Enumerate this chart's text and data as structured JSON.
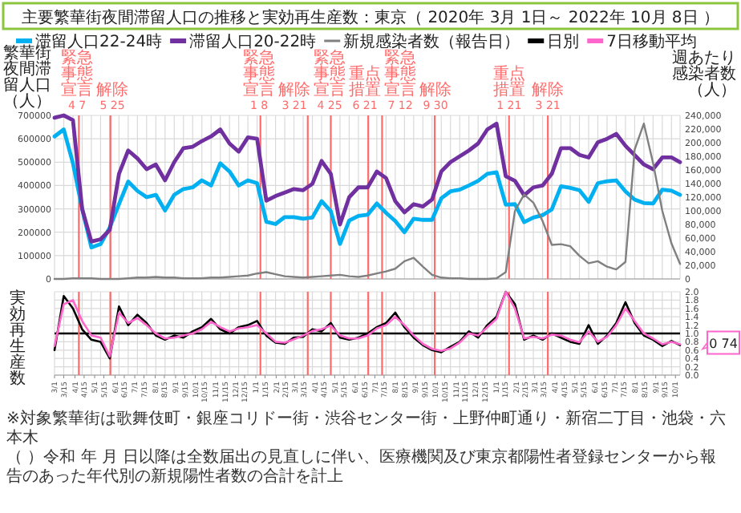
{
  "chart_data": [
    {
      "type": "line",
      "title": "主要繁華街夜間滞留人口の推移と実効再生産数：東京（ 2020年 3月 1日～ 2022年 10月 8日 ）",
      "ylabel": "繁華街夜間滞留人口（人）",
      "y2label": "週あたり感染者数（人）",
      "legend": "top",
      "grid": true,
      "tick_labels": "y",
      "x": [
        "2020-03-01",
        "2020-03-15",
        "2020-03-29",
        "2020-04-12",
        "2020-04-26",
        "2020-05-10",
        "2020-05-24",
        "2020-06-07",
        "2020-06-21",
        "2020-07-05",
        "2020-07-19",
        "2020-08-02",
        "2020-08-16",
        "2020-08-30",
        "2020-09-13",
        "2020-09-27",
        "2020-10-11",
        "2020-10-25",
        "2020-11-08",
        "2020-11-22",
        "2020-12-06",
        "2020-12-20",
        "2021-01-03",
        "2021-01-17",
        "2021-01-31",
        "2021-02-14",
        "2021-02-28",
        "2021-03-14",
        "2021-03-28",
        "2021-04-11",
        "2021-04-25",
        "2021-05-09",
        "2021-05-23",
        "2021-06-06",
        "2021-06-20",
        "2021-07-04",
        "2021-07-18",
        "2021-08-01",
        "2021-08-15",
        "2021-08-29",
        "2021-09-12",
        "2021-09-26",
        "2021-10-10",
        "2021-10-24",
        "2021-11-07",
        "2021-11-21",
        "2021-12-05",
        "2021-12-19",
        "2022-01-02",
        "2022-01-16",
        "2022-01-30",
        "2022-02-13",
        "2022-02-27",
        "2022-03-13",
        "2022-03-27",
        "2022-04-10",
        "2022-04-24",
        "2022-05-08",
        "2022-05-22",
        "2022-06-05",
        "2022-06-19",
        "2022-07-03",
        "2022-07-17",
        "2022-07-31",
        "2022-08-14",
        "2022-08-28",
        "2022-09-11",
        "2022-09-25",
        "2022-10-08"
      ],
      "xlim": [
        "2020-03-01",
        "2022-10-08"
      ],
      "ylim": [
        0,
        700000
      ],
      "yticks": [
        0,
        100000,
        200000,
        300000,
        400000,
        500000,
        600000,
        700000
      ],
      "y2lim": [
        0,
        240000
      ],
      "y2ticks": [
        0,
        {
          "value": 20000,
          "label": "20,000"
        },
        {
          "value": 40000,
          "label": "40,000"
        },
        {
          "value": 60000,
          "label": "60,000"
        },
        {
          "value": 80000,
          "label": "80,000"
        },
        {
          "value": 100000,
          "label": "100,000"
        },
        {
          "value": 120000,
          "label": "120,000"
        },
        {
          "value": 140000,
          "label": "140,000"
        },
        {
          "value": 160000,
          "label": "160,000"
        },
        {
          "value": 180000,
          "label": "180,000"
        },
        {
          "value": 200000,
          "label": "200,000"
        },
        {
          "value": 220000,
          "label": "220,000"
        },
        {
          "value": 240000,
          "label": "240,000"
        }
      ],
      "series": [
        {
          "name": "滞留人口22-24時",
          "color": "#00b0f0",
          "values": [
            610000,
            640000,
            495000,
            300000,
            135000,
            149000,
            220000,
            320000,
            417000,
            377000,
            350000,
            360000,
            293000,
            360000,
            385000,
            392000,
            422000,
            400000,
            495000,
            460000,
            400000,
            422000,
            410000,
            245000,
            235000,
            265000,
            265000,
            258000,
            263000,
            333000,
            290000,
            150000,
            250000,
            270000,
            275000,
            323000,
            283000,
            248000,
            200000,
            258000,
            253000,
            253000,
            345000,
            375000,
            382000,
            400000,
            420000,
            450000,
            457000,
            318000,
            320000,
            243000,
            263000,
            273000,
            298000,
            397000,
            390000,
            380000,
            330000,
            410000,
            418000,
            422000,
            375000,
            340000,
            325000,
            323000,
            382000,
            378000,
            360000
          ]
        },
        {
          "name": "滞留人口20-22時",
          "color": "#7030a0",
          "values": [
            690000,
            700000,
            680000,
            300000,
            160000,
            170000,
            210000,
            450000,
            550000,
            516000,
            470000,
            490000,
            422000,
            500000,
            560000,
            566000,
            590000,
            610000,
            640000,
            580000,
            545000,
            606000,
            600000,
            335000,
            355000,
            370000,
            385000,
            380000,
            407000,
            505000,
            450000,
            233000,
            350000,
            392000,
            392000,
            460000,
            432000,
            333000,
            285000,
            320000,
            310000,
            340000,
            460000,
            500000,
            525000,
            550000,
            580000,
            640000,
            665000,
            440000,
            420000,
            358000,
            392000,
            400000,
            450000,
            560000,
            560000,
            531000,
            520000,
            585000,
            600000,
            621000,
            570000,
            530000,
            490000,
            470000,
            520000,
            520000,
            500000
          ]
        },
        {
          "name": "新規感染者数（報告日）",
          "color": "#808080",
          "axis": "y2",
          "values": [
            0,
            0,
            1000,
            1000,
            1000,
            0,
            0,
            0,
            1000,
            2000,
            2000,
            3000,
            2000,
            2000,
            1000,
            1000,
            1000,
            2000,
            2000,
            3000,
            4000,
            5000,
            8000,
            10000,
            7000,
            4000,
            3000,
            2000,
            3000,
            4000,
            5000,
            6000,
            4000,
            3000,
            5000,
            8000,
            11000,
            15000,
            26000,
            31000,
            18000,
            6000,
            2000,
            1000,
            1000,
            0,
            0,
            0,
            1000,
            10000,
            100000,
            124000,
            112000,
            85000,
            50000,
            51000,
            48000,
            34000,
            23000,
            26000,
            18000,
            14000,
            25000,
            190000,
            228000,
            170000,
            100000,
            52000,
            22000
          ]
        }
      ],
      "ref_lines": [
        {
          "axis": "x",
          "value": "2020-04-07",
          "label": "緊急事態宣言 4 7",
          "color": "#ff6b6b"
        },
        {
          "axis": "x",
          "value": "2020-05-25",
          "label": "解除 5 25",
          "color": "#ff6b6b"
        },
        {
          "axis": "x",
          "value": "2021-01-08",
          "label": "緊急事態宣言 1 8",
          "color": "#ff6b6b"
        },
        {
          "axis": "x",
          "value": "2021-03-21",
          "label": "解除 3 21",
          "color": "#ff6b6b"
        },
        {
          "axis": "x",
          "value": "2021-04-25",
          "label": "緊急事態宣言 4 25",
          "color": "#ff6b6b"
        },
        {
          "axis": "x",
          "value": "2021-06-21",
          "label": "重点措置 6 21",
          "color": "#ff6b6b"
        },
        {
          "axis": "x",
          "value": "2021-07-12",
          "label": "緊急事態宣言 7 12",
          "color": "#ff6b6b"
        },
        {
          "axis": "x",
          "value": "2021-09-30",
          "label": "解除 9 30",
          "color": "#ff6b6b"
        },
        {
          "axis": "x",
          "value": "2022-01-21",
          "label": "重点措置 1 21",
          "color": "#ff6b6b"
        },
        {
          "axis": "x",
          "value": "2022-03-21",
          "label": "解除 3 21",
          "color": "#ff6b6b"
        }
      ]
    },
    {
      "type": "line",
      "ylabel": "実効再生産数",
      "legend": "top",
      "grid": true,
      "x": [
        "2020-03-01",
        "2020-03-15",
        "2020-03-29",
        "2020-04-12",
        "2020-04-26",
        "2020-05-10",
        "2020-05-24",
        "2020-06-07",
        "2020-06-21",
        "2020-07-05",
        "2020-07-19",
        "2020-08-02",
        "2020-08-16",
        "2020-08-30",
        "2020-09-13",
        "2020-09-27",
        "2020-10-11",
        "2020-10-25",
        "2020-11-08",
        "2020-11-22",
        "2020-12-06",
        "2020-12-20",
        "2021-01-03",
        "2021-01-17",
        "2021-01-31",
        "2021-02-14",
        "2021-02-28",
        "2021-03-14",
        "2021-03-28",
        "2021-04-11",
        "2021-04-25",
        "2021-05-09",
        "2021-05-23",
        "2021-06-06",
        "2021-06-20",
        "2021-07-04",
        "2021-07-18",
        "2021-08-01",
        "2021-08-15",
        "2021-08-29",
        "2021-09-12",
        "2021-09-26",
        "2021-10-10",
        "2021-10-24",
        "2021-11-07",
        "2021-11-21",
        "2021-12-05",
        "2021-12-19",
        "2022-01-02",
        "2022-01-16",
        "2022-01-30",
        "2022-02-13",
        "2022-02-27",
        "2022-03-13",
        "2022-03-27",
        "2022-04-10",
        "2022-04-24",
        "2022-05-08",
        "2022-05-22",
        "2022-06-05",
        "2022-06-19",
        "2022-07-03",
        "2022-07-17",
        "2022-07-31",
        "2022-08-14",
        "2022-08-28",
        "2022-09-11",
        "2022-09-25",
        "2022-10-08"
      ],
      "xlim": [
        "2020-03-01",
        "2022-10-08"
      ],
      "ylim": [
        0,
        2
      ],
      "yticks": [
        {
          "value": 0,
          "label": "0.0"
        },
        0.2,
        0.4,
        0.6,
        0.8,
        {
          "value": 1,
          "label": "1.0"
        },
        1.2,
        1.4,
        1.6,
        1.8,
        {
          "value": 2,
          "label": "2.0"
        }
      ],
      "xticks": [
        {
          "value": "2020-03-01",
          "label": "3/1"
        },
        {
          "value": "2020-03-15",
          "label": "3/15"
        },
        {
          "value": "2020-04-01",
          "label": "4/1"
        },
        {
          "value": "2020-04-15",
          "label": "4/15"
        },
        {
          "value": "2020-05-01",
          "label": "5/1"
        },
        {
          "value": "2020-05-15",
          "label": "5/15"
        },
        {
          "value": "2020-06-01",
          "label": "6/1"
        },
        {
          "value": "2020-06-15",
          "label": "6/15"
        },
        {
          "value": "2020-07-01",
          "label": "7/1"
        },
        {
          "value": "2020-07-15",
          "label": "7/15"
        },
        {
          "value": "2020-08-01",
          "label": "8/1"
        },
        {
          "value": "2020-08-15",
          "label": "8/15"
        },
        {
          "value": "2020-09-01",
          "label": "9/1"
        },
        {
          "value": "2020-09-15",
          "label": "9/15"
        },
        {
          "value": "2020-10-01",
          "label": "10/1"
        },
        {
          "value": "2020-10-15",
          "label": "10/15"
        },
        {
          "value": "2020-11-01",
          "label": "11/1"
        },
        {
          "value": "2020-11-15",
          "label": "11/15"
        },
        {
          "value": "2020-12-01",
          "label": "12/1"
        },
        {
          "value": "2020-12-15",
          "label": "12/15"
        },
        {
          "value": "2021-01-01",
          "label": "1/1"
        },
        {
          "value": "2021-01-15",
          "label": "1/15"
        },
        {
          "value": "2021-02-01",
          "label": "2/1"
        },
        {
          "value": "2021-02-15",
          "label": "2/15"
        },
        {
          "value": "2021-03-01",
          "label": "3/1"
        },
        {
          "value": "2021-03-15",
          "label": "3/15"
        },
        {
          "value": "2021-04-01",
          "label": "4/1"
        },
        {
          "value": "2021-04-15",
          "label": "4/15"
        },
        {
          "value": "2021-05-01",
          "label": "5/1"
        },
        {
          "value": "2021-05-15",
          "label": "5/15"
        },
        {
          "value": "2021-06-01",
          "label": "6/1"
        },
        {
          "value": "2021-06-15",
          "label": "6/15"
        },
        {
          "value": "2021-07-01",
          "label": "7/1"
        },
        {
          "value": "2021-07-15",
          "label": "7/15"
        },
        {
          "value": "2021-08-01",
          "label": "8/1"
        },
        {
          "value": "2021-08-15",
          "label": "8/15"
        },
        {
          "value": "2021-09-01",
          "label": "9/1"
        },
        {
          "value": "2021-09-15",
          "label": "9/15"
        },
        {
          "value": "2021-10-01",
          "label": "10/1"
        },
        {
          "value": "2021-10-15",
          "label": "10/15"
        },
        {
          "value": "2021-11-01",
          "label": "11/1"
        },
        {
          "value": "2021-11-15",
          "label": "11/15"
        },
        {
          "value": "2021-12-01",
          "label": "12/1"
        },
        {
          "value": "2021-12-15",
          "label": "12/15"
        },
        {
          "value": "2022-01-01",
          "label": "1/1"
        },
        {
          "value": "2022-01-15",
          "label": "1/15"
        },
        {
          "value": "2022-02-01",
          "label": "2/1"
        },
        {
          "value": "2022-02-15",
          "label": "2/15"
        },
        {
          "value": "2022-03-01",
          "label": "3/1"
        },
        {
          "value": "2022-03-15",
          "label": "3/15"
        },
        {
          "value": "2022-04-01",
          "label": "4/1"
        },
        {
          "value": "2022-04-15",
          "label": "4/15"
        },
        {
          "value": "2022-05-01",
          "label": "5/1"
        },
        {
          "value": "2022-05-15",
          "label": "5/15"
        },
        {
          "value": "2022-06-01",
          "label": "6/1"
        },
        {
          "value": "2022-06-15",
          "label": "6/15"
        },
        {
          "value": "2022-07-01",
          "label": "7/1"
        },
        {
          "value": "2022-07-15",
          "label": "7/15"
        },
        {
          "value": "2022-08-01",
          "label": "8/1"
        },
        {
          "value": "2022-08-15",
          "label": "8/15"
        },
        {
          "value": "2022-09-01",
          "label": "9/1"
        },
        {
          "value": "2022-09-15",
          "label": "9/15"
        },
        {
          "value": "2022-10-01",
          "label": "10/1"
        }
      ],
      "series": [
        {
          "name": "日別",
          "color": "#000000",
          "values": [
            0.6,
            1.9,
            1.6,
            1.1,
            0.85,
            0.8,
            0.4,
            1.65,
            1.2,
            1.45,
            1.25,
            0.95,
            0.85,
            0.95,
            0.9,
            1.05,
            1.15,
            1.35,
            1.1,
            1.0,
            1.15,
            1.2,
            1.3,
            0.95,
            0.78,
            0.75,
            0.9,
            0.92,
            1.1,
            1.05,
            1.25,
            0.9,
            0.85,
            0.9,
            1.0,
            1.15,
            1.25,
            1.5,
            1.15,
            0.9,
            0.72,
            0.6,
            0.55,
            0.68,
            0.8,
            1.05,
            0.9,
            1.2,
            1.4,
            2.0,
            1.7,
            0.85,
            0.95,
            0.85,
            1.0,
            0.9,
            0.8,
            0.75,
            1.2,
            0.75,
            0.95,
            1.25,
            1.75,
            1.25,
            0.95,
            0.85,
            0.7,
            0.82,
            0.72
          ]
        },
        {
          "name": "7日移動平均",
          "color": "#ff66cc",
          "values": [
            0.7,
            1.7,
            1.8,
            1.3,
            0.95,
            0.9,
            0.45,
            1.5,
            1.25,
            1.37,
            1.2,
            1.0,
            0.88,
            0.9,
            0.95,
            1.0,
            1.1,
            1.28,
            1.15,
            1.05,
            1.12,
            1.15,
            1.2,
            1.0,
            0.8,
            0.78,
            0.86,
            0.95,
            1.06,
            1.1,
            1.19,
            0.95,
            0.88,
            0.88,
            0.95,
            1.12,
            1.2,
            1.4,
            1.2,
            0.95,
            0.75,
            0.63,
            0.58,
            0.64,
            0.78,
            1.0,
            0.95,
            1.15,
            1.35,
            2.0,
            1.6,
            0.88,
            0.92,
            0.88,
            0.97,
            0.95,
            0.85,
            0.79,
            1.05,
            0.8,
            0.92,
            1.2,
            1.6,
            1.3,
            1.0,
            0.88,
            0.74,
            0.8,
            0.74
          ]
        }
      ],
      "ref_lines": [
        {
          "axis": "y",
          "value": 1,
          "color": "#000000"
        },
        {
          "axis": "x",
          "value": "2020-04-07",
          "color": "#ff6b6b"
        },
        {
          "axis": "x",
          "value": "2020-05-25",
          "color": "#ff6b6b"
        },
        {
          "axis": "x",
          "value": "2021-01-08",
          "color": "#ff6b6b"
        },
        {
          "axis": "x",
          "value": "2021-03-21",
          "color": "#ff6b6b"
        },
        {
          "axis": "x",
          "value": "2021-04-25",
          "color": "#ff6b6b"
        },
        {
          "axis": "x",
          "value": "2021-06-21",
          "color": "#ff6b6b"
        },
        {
          "axis": "x",
          "value": "2021-07-12",
          "color": "#ff6b6b"
        },
        {
          "axis": "x",
          "value": "2021-09-30",
          "color": "#ff6b6b"
        },
        {
          "axis": "x",
          "value": "2022-01-21",
          "color": "#ff6b6b"
        },
        {
          "axis": "x",
          "value": "2022-03-21",
          "color": "#ff6b6b"
        }
      ],
      "annotations": [
        {
          "text": "0 74",
          "x": "2022-10-08",
          "y": 0.74
        },
        "※対象繁華街は歌舞伎町・銀座コリドー街・渋谷センター街・上野仲町通り・新宿二丁目・池袋・六本木",
        "（ ）令和 年 月 日以降は全数届出の見直しに伴い、医療機関及び東京都陽性者登録センターから報告のあった年代別の新規陽性者数の合計を計上"
      ]
    }
  ]
}
